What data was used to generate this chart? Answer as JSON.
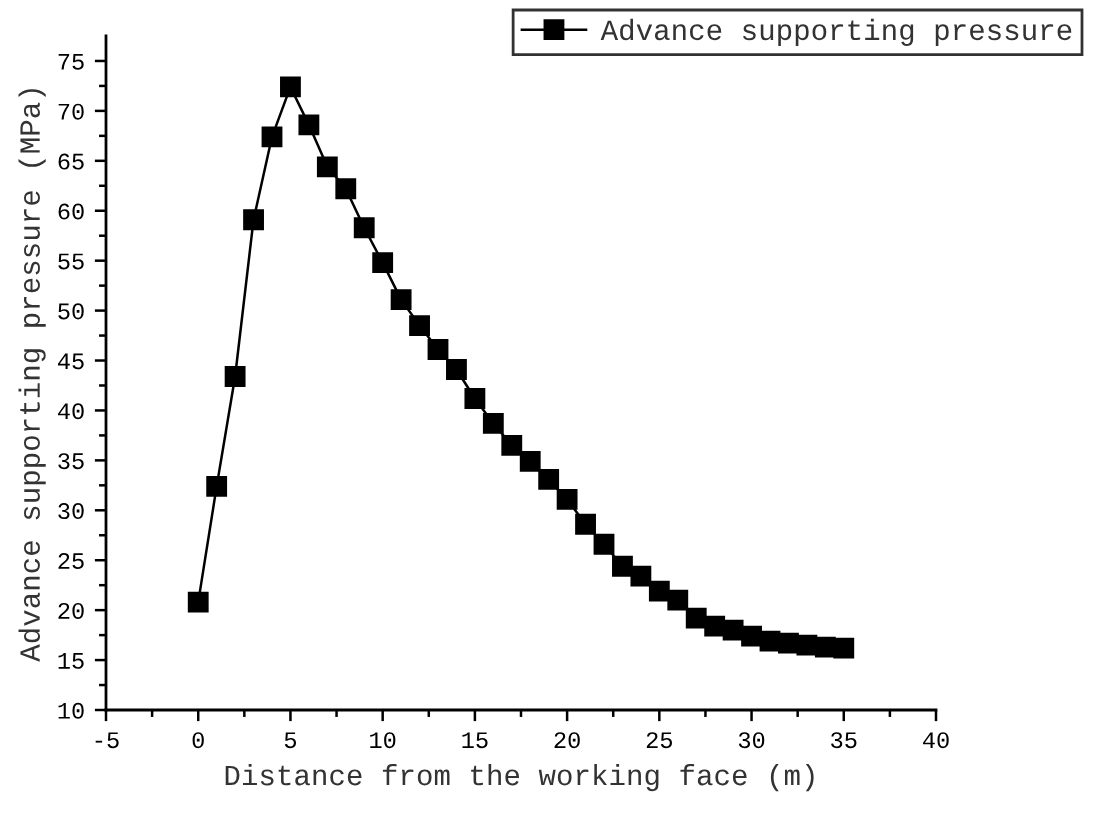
{
  "chart_data": {
    "type": "line",
    "xlabel": "Distance from the working face (m)",
    "ylabel": "Advance supporting pressure (MPa)",
    "x": [
      0,
      1,
      2,
      3,
      4,
      5,
      6,
      7,
      8,
      9,
      10,
      11,
      12,
      13,
      14,
      15,
      16,
      17,
      18,
      19,
      20,
      21,
      22,
      23,
      24,
      25,
      26,
      27,
      28,
      29,
      30,
      31,
      32,
      33,
      34,
      35
    ],
    "series": [
      {
        "name": "Advance supporting pressure",
        "color": "#000000",
        "values": [
          20.8,
          32.4,
          43.4,
          59.1,
          67.4,
          72.4,
          68.6,
          64.4,
          62.2,
          58.3,
          54.8,
          51.1,
          48.5,
          46.1,
          44.1,
          41.2,
          38.7,
          36.5,
          34.9,
          33.1,
          31.1,
          28.6,
          26.6,
          24.4,
          23.4,
          21.9,
          21.0,
          19.2,
          18.4,
          18.0,
          17.4,
          16.9,
          16.7,
          16.5,
          16.3,
          16.2
        ]
      }
    ],
    "xlim": [
      -5,
      40
    ],
    "xticks": [
      -5,
      0,
      5,
      10,
      15,
      20,
      25,
      30,
      35,
      40
    ],
    "ylim": [
      10,
      77.5
    ],
    "yticks": [
      10,
      15,
      20,
      25,
      30,
      35,
      40,
      45,
      50,
      55,
      60,
      65,
      70,
      75
    ],
    "marker": "square",
    "line_style": "solid",
    "legend": "top right",
    "grid": false
  }
}
